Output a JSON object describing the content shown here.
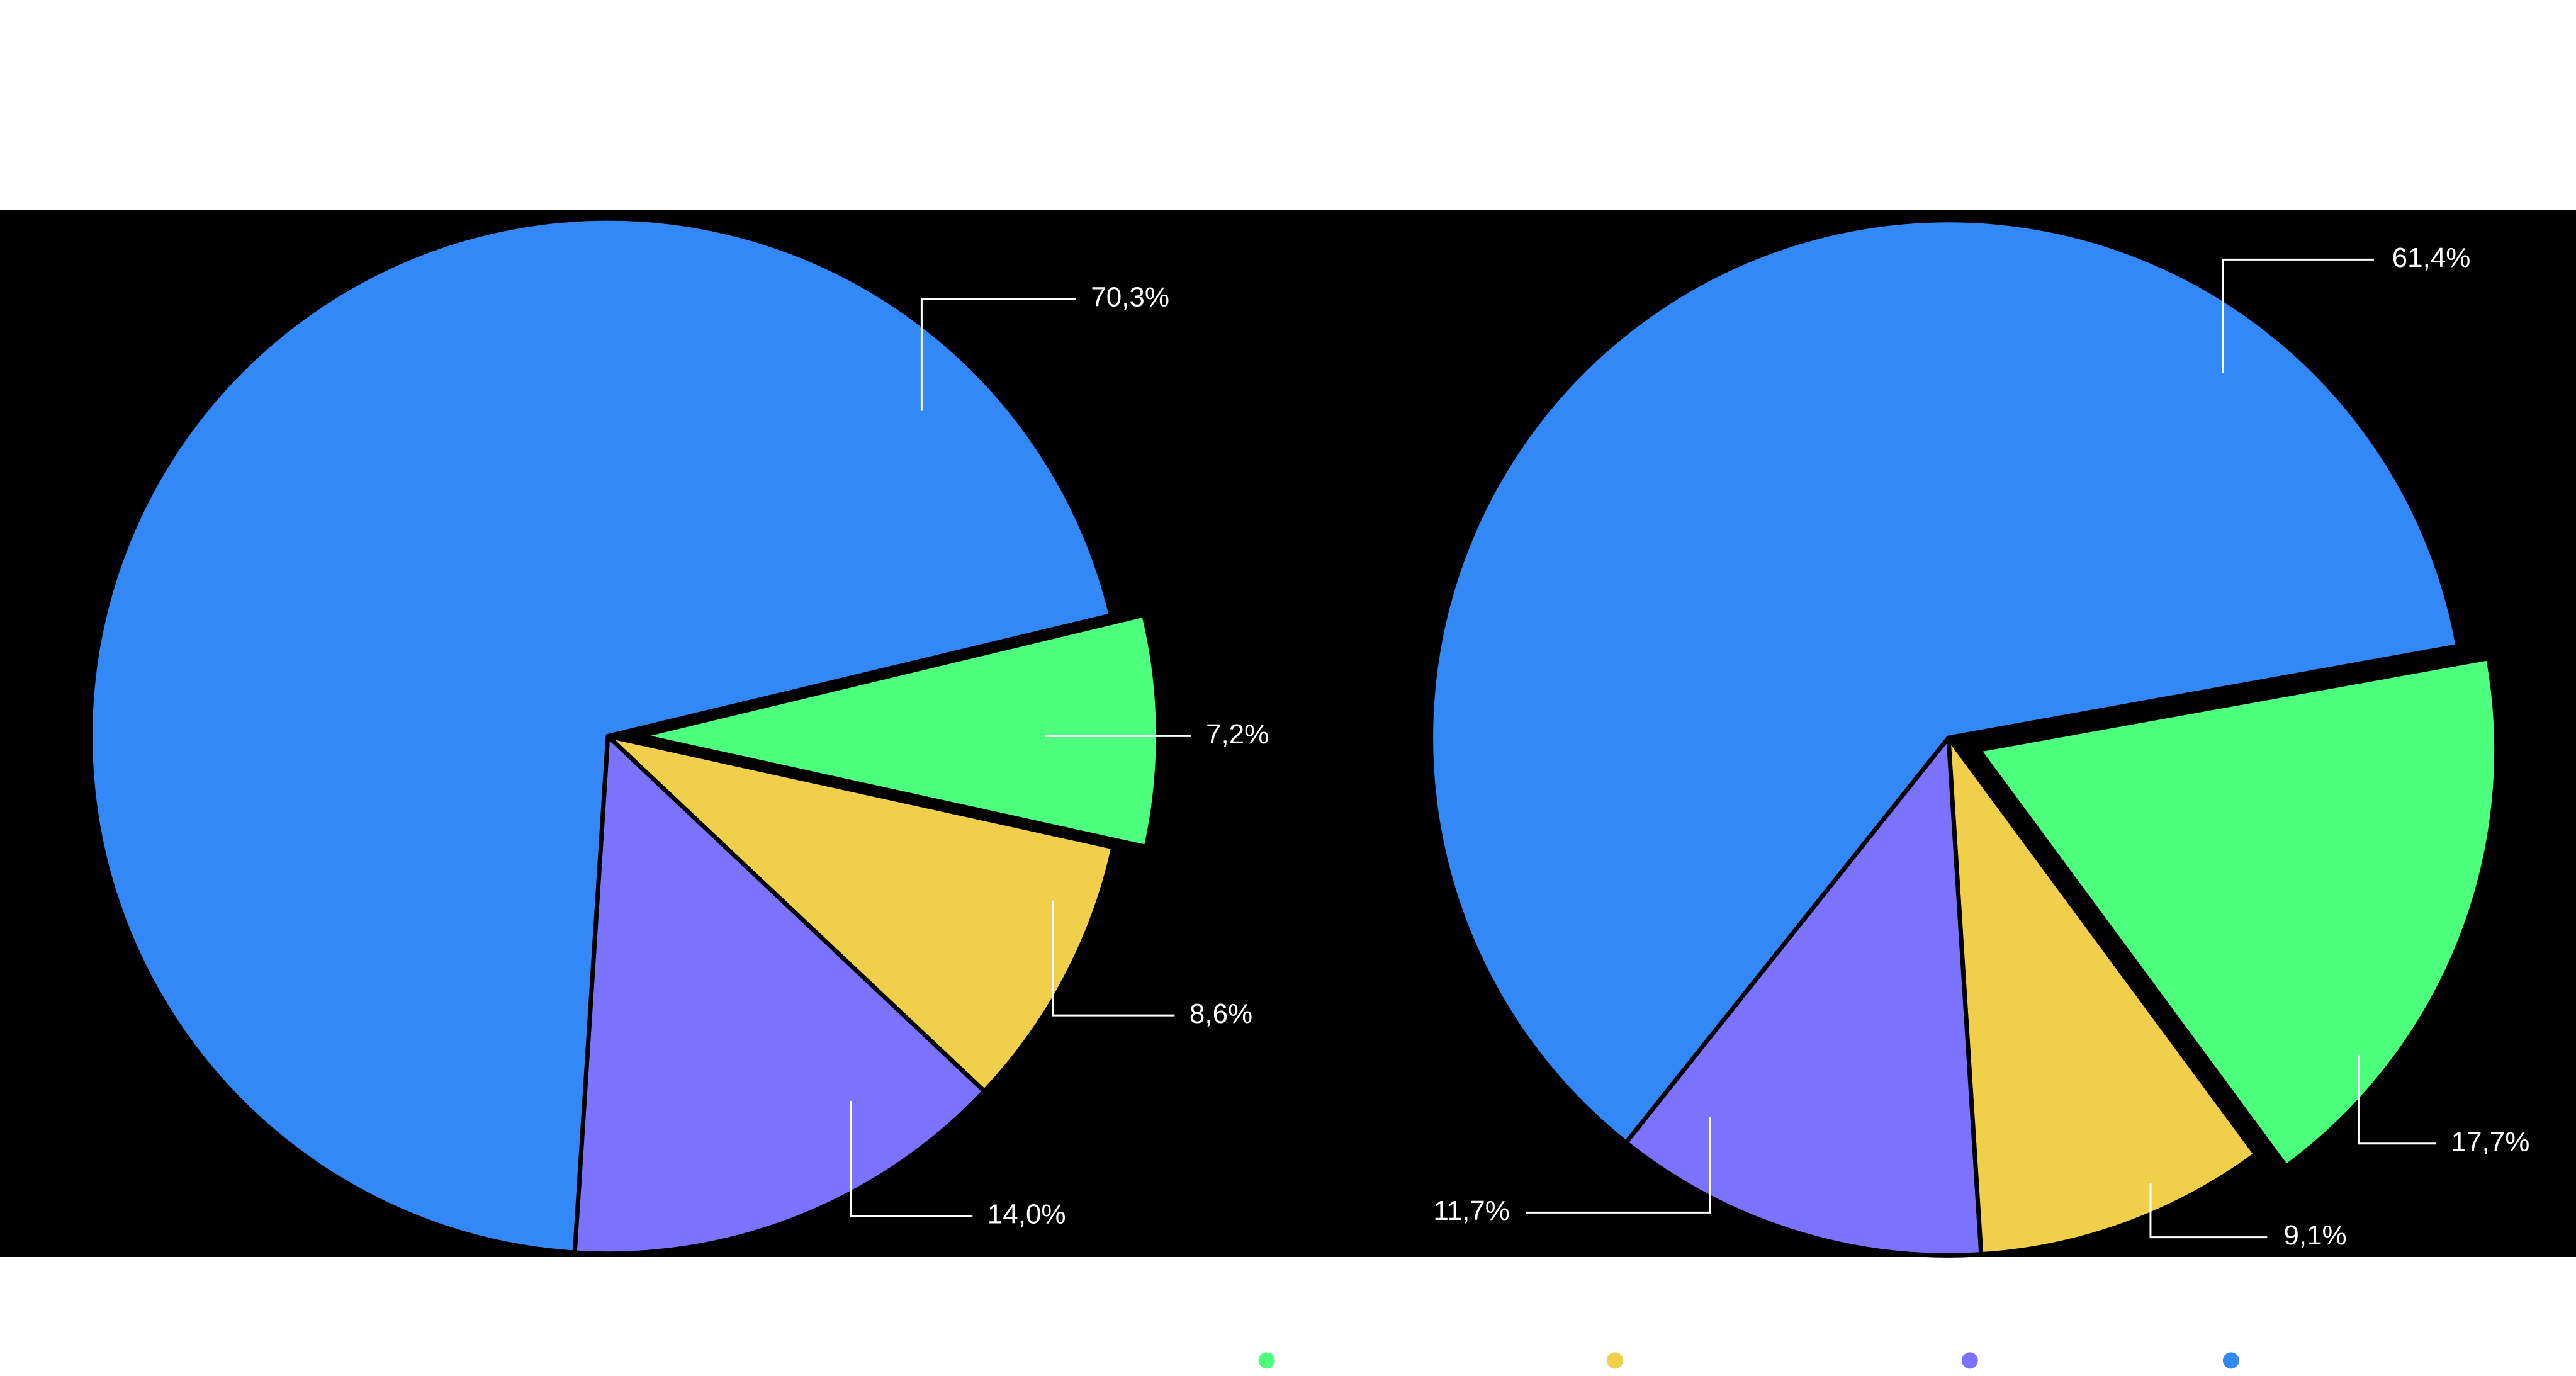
{
  "chart_data": [
    {
      "type": "pie",
      "values": [
        7.2,
        8.6,
        14.0,
        70.3
      ],
      "value_labels": [
        "7,2%",
        "8,6%",
        "14,0%",
        "70,3%"
      ],
      "colors": [
        "#4cff7c",
        "#f0d04a",
        "#7b73ff",
        "#3388f8"
      ]
    },
    {
      "type": "pie",
      "values": [
        17.7,
        9.1,
        11.7,
        61.4
      ],
      "value_labels": [
        "17,7%",
        "9,1%",
        "11,7%",
        "61,4%"
      ],
      "colors": [
        "#4cff7c",
        "#f0d04a",
        "#7b73ff",
        "#3388f8"
      ]
    }
  ]
}
